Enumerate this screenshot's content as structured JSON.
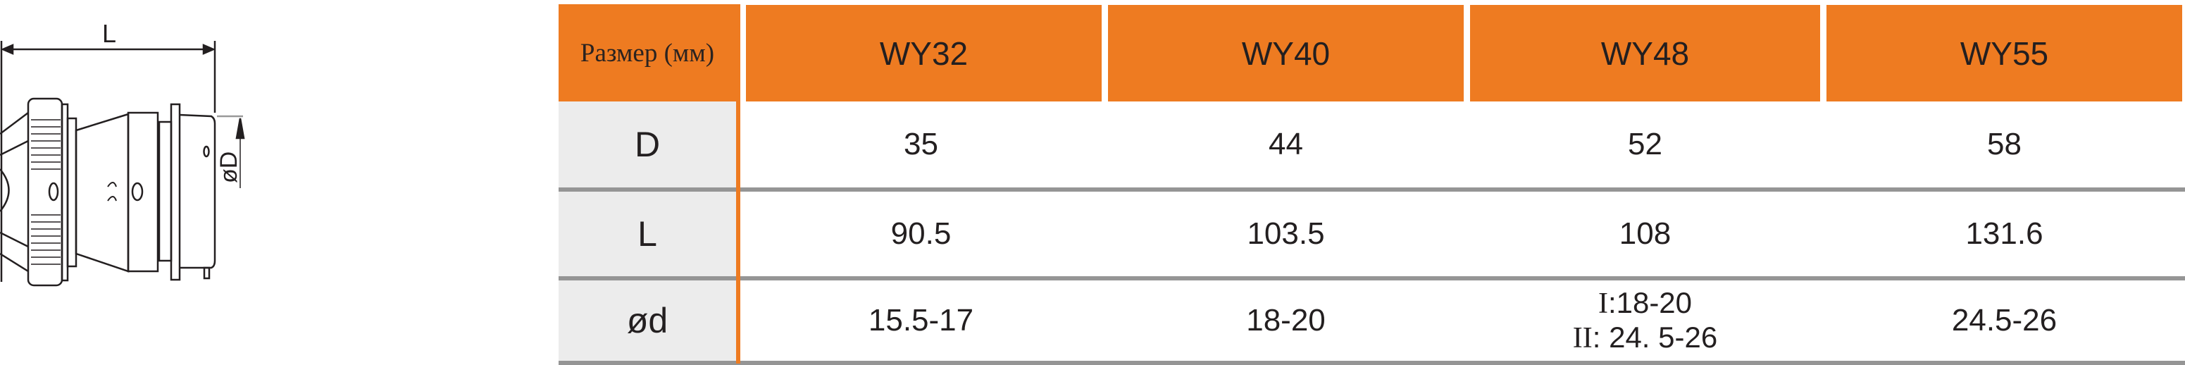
{
  "drawing": {
    "length_label": "L",
    "diameter_label": "øD"
  },
  "table": {
    "header_label": "Размер (мм)",
    "models": [
      "WY32",
      "WY40",
      "WY48",
      "WY55"
    ],
    "rows": [
      {
        "label": "D",
        "values": [
          "35",
          "44",
          "52",
          "58"
        ]
      },
      {
        "label": "L",
        "values": [
          "90.5",
          "103.5",
          "108",
          "131.6"
        ]
      },
      {
        "label": "ød",
        "values": [
          "15.5-17",
          "18-20",
          null,
          "24.5-26"
        ],
        "wy48_lines": [
          {
            "prefix": "I",
            "value": ":18-20"
          },
          {
            "prefix": "II",
            "value": ": 24. 5-26"
          }
        ]
      }
    ]
  },
  "colors": {
    "header": "#ee7b21",
    "label_column": "#ececec",
    "row_divider": "#959595",
    "text": "#231f20"
  }
}
